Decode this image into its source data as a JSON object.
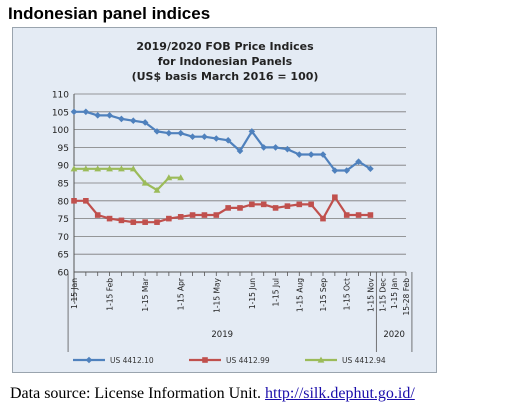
{
  "page": {
    "heading": "Indonesian panel indices",
    "source_label": "Data source: License Information Unit.",
    "source_link": "http://silk.dephut.go.id/"
  },
  "chart_data": {
    "type": "line",
    "title_lines": [
      "2019/2020 FOB Price Indices",
      "for Indonesian Panels",
      "(US$ basis March 2016 = 100)"
    ],
    "ylim": [
      60,
      110
    ],
    "yticks": [
      60,
      65,
      70,
      75,
      80,
      85,
      90,
      95,
      100,
      105,
      110
    ],
    "grid": true,
    "legend_position": "bottom",
    "x_count": 29,
    "x_tick_labels": [
      {
        "i": 0,
        "label": "1-15 Jan"
      },
      {
        "i": 3,
        "label": "1-15 Feb"
      },
      {
        "i": 6,
        "label": "1-15 Mar"
      },
      {
        "i": 9,
        "label": "1-15 Apr"
      },
      {
        "i": 12,
        "label": "1-15 May"
      },
      {
        "i": 15,
        "label": "1-15 Jun"
      },
      {
        "i": 17,
        "label": "1-15 Jul"
      },
      {
        "i": 19,
        "label": "1-15 Aug"
      },
      {
        "i": 21,
        "label": "1-15 Sep"
      },
      {
        "i": 23,
        "label": "1-15 Oct"
      },
      {
        "i": 25,
        "label": "1-15 Nov"
      },
      {
        "i": 26,
        "label": "1-15 Dec"
      },
      {
        "i": 27,
        "label": "1-15 Jan"
      },
      {
        "i": 28,
        "label": "15-28 Feb"
      }
    ],
    "year_groups": [
      {
        "label": "2019",
        "from": 0,
        "to": 25
      },
      {
        "label": "2020",
        "from": 26,
        "to": 28
      }
    ],
    "series": [
      {
        "name": "US 4412.10",
        "color": "#4f81bd",
        "marker": "diamond",
        "values": [
          105,
          105,
          104,
          104,
          103,
          102.5,
          102,
          99.5,
          99,
          99,
          98,
          98,
          97.5,
          97,
          94,
          99.5,
          95,
          95,
          94.5,
          93,
          93,
          93,
          88.5,
          88.5,
          91,
          89
        ]
      },
      {
        "name": "US 4412.99",
        "color": "#c0504d",
        "marker": "square",
        "values": [
          80,
          80,
          76,
          75,
          74.5,
          74,
          74,
          74,
          75,
          75.5,
          76,
          76,
          76,
          78,
          78,
          79,
          79,
          78,
          78.5,
          79,
          79,
          75,
          81,
          76,
          76,
          76
        ]
      },
      {
        "name": "US 4412.94",
        "color": "#9bbb59",
        "marker": "triangle",
        "values": [
          89,
          89,
          89,
          89,
          89,
          89,
          85,
          83,
          86.5,
          86.5
        ]
      }
    ]
  }
}
